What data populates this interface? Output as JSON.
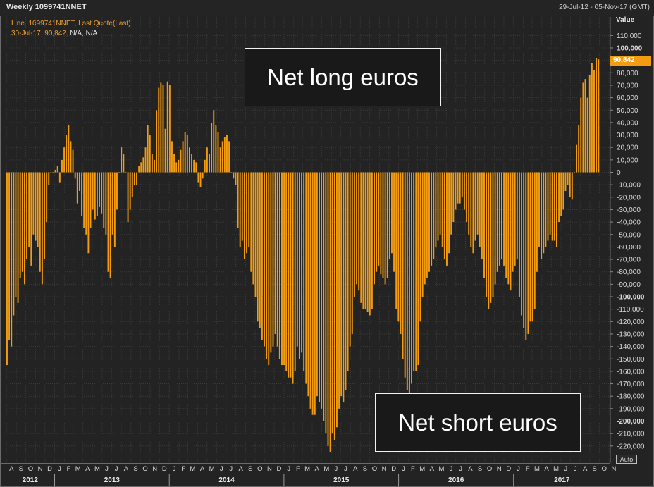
{
  "header": {
    "date_range": "29-Jul-12 - 05-Nov-17 (GMT)"
  },
  "legend": {
    "line1": "Line, 1099741NNET, Last Quote(Last)",
    "line2": "30-Jul-17, 90,842,",
    "na": "N/A, N/A",
    "last_value": "90,842"
  },
  "annotations": {
    "net_long": "Net long euros",
    "net_short": "Net short euros"
  },
  "controls": {
    "auto_label": "Auto"
  },
  "colors": {
    "bar": "#f39c12",
    "grid": "#3a3a3a",
    "axis_text": "#dcdcdc",
    "background": "#232323"
  },
  "chart_data": {
    "type": "bar",
    "title": "Weekly 1099741NNET",
    "xlabel": "",
    "ylabel": "Value",
    "ylim": [
      -230000,
      120000
    ],
    "y_ticks": [
      110000,
      100000,
      90000,
      80000,
      70000,
      60000,
      50000,
      40000,
      30000,
      20000,
      10000,
      0,
      -10000,
      -20000,
      -30000,
      -40000,
      -50000,
      -60000,
      -70000,
      -80000,
      -90000,
      -100000,
      -110000,
      -120000,
      -130000,
      -140000,
      -150000,
      -160000,
      -170000,
      -180000,
      -190000,
      -200000,
      -210000,
      -220000
    ],
    "y_tick_labels": [
      "110,000",
      "100,000",
      "90,000",
      "80,000",
      "70,000",
      "60,000",
      "50,000",
      "40,000",
      "30,000",
      "20,000",
      "10,000",
      "0",
      "-10,000",
      "-20,000",
      "-30,000",
      "-40,000",
      "-50,000",
      "-60,000",
      "-70,000",
      "-80,000",
      "-90,000",
      "-100,000",
      "-110,000",
      "-120,000",
      "-130,000",
      "-140,000",
      "-150,000",
      "-160,000",
      "-170,000",
      "-180,000",
      "-190,000",
      "-200,000",
      "-210,000",
      "-220,000"
    ],
    "grid": true,
    "x_range": [
      "2012-07-29",
      "2017-11-05"
    ],
    "month_labels": [
      "A",
      "S",
      "O",
      "N",
      "D",
      "J",
      "F",
      "M",
      "A",
      "M",
      "J",
      "J",
      "A",
      "S",
      "O",
      "N",
      "D",
      "J",
      "F",
      "M",
      "A",
      "M",
      "J",
      "J",
      "A",
      "S",
      "O",
      "N",
      "D",
      "J",
      "F",
      "M",
      "A",
      "M",
      "J",
      "J",
      "A",
      "S",
      "O",
      "N",
      "D",
      "J",
      "F",
      "M",
      "A",
      "M",
      "J",
      "J",
      "A",
      "S",
      "O",
      "N",
      "D",
      "J",
      "F",
      "M",
      "A",
      "M",
      "J",
      "J",
      "A",
      "S",
      "O",
      "N"
    ],
    "year_labels": [
      "2012",
      "2013",
      "2014",
      "2015",
      "2016",
      "2017"
    ],
    "series": [
      {
        "name": "1099741NNET",
        "start_date": "2012-07-29",
        "interval": "weekly",
        "values": [
          -155000,
          -135000,
          -140000,
          -115000,
          -100000,
          -105000,
          -85000,
          -80000,
          -90000,
          -70000,
          -60000,
          -75000,
          -50000,
          -55000,
          -60000,
          -80000,
          -90000,
          -70000,
          -40000,
          -10000,
          0,
          0,
          2000,
          5000,
          -8000,
          10000,
          20000,
          30000,
          38000,
          25000,
          18000,
          -5000,
          -25000,
          -15000,
          -35000,
          -45000,
          -50000,
          -65000,
          -45000,
          -30000,
          -38000,
          -35000,
          -28000,
          -33000,
          -45000,
          -50000,
          -80000,
          -85000,
          -50000,
          -60000,
          -30000,
          0,
          20000,
          15000,
          0,
          -40000,
          -30000,
          -20000,
          -10000,
          -10000,
          5000,
          8000,
          12000,
          20000,
          38000,
          30000,
          15000,
          10000,
          50000,
          68000,
          72000,
          70000,
          35000,
          73000,
          70000,
          25000,
          15000,
          8000,
          10000,
          18000,
          25000,
          32000,
          30000,
          20000,
          15000,
          10000,
          8000,
          -8000,
          -12000,
          -5000,
          10000,
          20000,
          15000,
          40000,
          50000,
          38000,
          32000,
          20000,
          25000,
          28000,
          30000,
          25000,
          0,
          -5000,
          -10000,
          -45000,
          -60000,
          -55000,
          -70000,
          -65000,
          -60000,
          -80000,
          -90000,
          -100000,
          -120000,
          -125000,
          -135000,
          -140000,
          -150000,
          -155000,
          -145000,
          -140000,
          -130000,
          -140000,
          -150000,
          -155000,
          -155000,
          -160000,
          -165000,
          -165000,
          -170000,
          -160000,
          -140000,
          -150000,
          -145000,
          -160000,
          -170000,
          -180000,
          -190000,
          -195000,
          -195000,
          -180000,
          -185000,
          -190000,
          -200000,
          -210000,
          -220000,
          -225000,
          -210000,
          -215000,
          -205000,
          -190000,
          -180000,
          -185000,
          -175000,
          -160000,
          -140000,
          -130000,
          -100000,
          -90000,
          -95000,
          -105000,
          -110000,
          -110000,
          -112000,
          -115000,
          -110000,
          -90000,
          -80000,
          -75000,
          -82000,
          -85000,
          -90000,
          -85000,
          -70000,
          -65000,
          -80000,
          -110000,
          -120000,
          -130000,
          -150000,
          -165000,
          -175000,
          -180000,
          -170000,
          -160000,
          -160000,
          -155000,
          -120000,
          -100000,
          -90000,
          -85000,
          -80000,
          -75000,
          -70000,
          -60000,
          -55000,
          -50000,
          -60000,
          -70000,
          -75000,
          -65000,
          -50000,
          -40000,
          -30000,
          -25000,
          -25000,
          -20000,
          -30000,
          -40000,
          -50000,
          -60000,
          -65000,
          -55000,
          -50000,
          -60000,
          -70000,
          -85000,
          -100000,
          -110000,
          -105000,
          -100000,
          -90000,
          -80000,
          -75000,
          -70000,
          -75000,
          -85000,
          -90000,
          -95000,
          -80000,
          -75000,
          -70000,
          -100000,
          -115000,
          -125000,
          -135000,
          -130000,
          -120000,
          -120000,
          -110000,
          -80000,
          -60000,
          -70000,
          -65000,
          -60000,
          -55000,
          -50000,
          -55000,
          -55000,
          -60000,
          -40000,
          -35000,
          -30000,
          -15000,
          -10000,
          -20000,
          -22000,
          0,
          22000,
          38000,
          60000,
          72000,
          75000,
          60000,
          78000,
          88000,
          82000,
          92000,
          90842
        ]
      }
    ]
  }
}
